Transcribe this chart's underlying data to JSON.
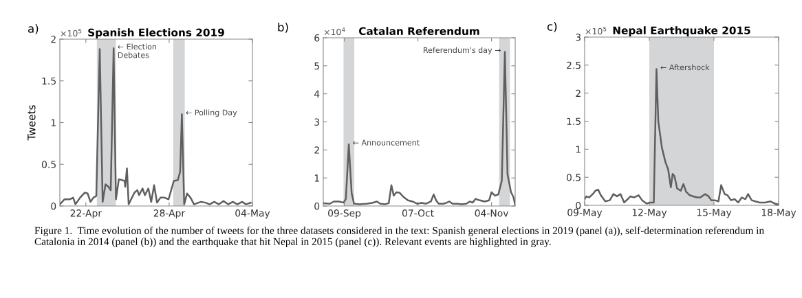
{
  "chart_data": [
    {
      "type": "line",
      "title": "Spanish Elections 2019",
      "ylabel": "Tweets",
      "xlim": [
        "2019-04-20T03:00",
        "2019-05-04"
      ],
      "xticks": [
        {
          "value": "2019-04-22",
          "label": "22-Apr"
        },
        {
          "value": "2019-04-28",
          "label": "28-Apr"
        },
        {
          "value": "2019-05-04",
          "label": "04-May"
        }
      ],
      "ylim": [
        0,
        2
      ],
      "yticks": [
        0,
        0.5,
        1,
        1.5,
        2
      ],
      "bands": [
        {
          "axis": "x",
          "from": "2019-04-22T19:00",
          "to": "2019-04-24T04:00",
          "color": "#d4d5d7"
        },
        {
          "axis": "x",
          "from": "2019-04-28T07:00",
          "to": "2019-04-29T03:00",
          "color": "#d4d5d7"
        }
      ],
      "series": [
        {
          "color": "#5f5f5f",
          "x": [
            "2019-04-20T03:00",
            "2019-04-20T11:00",
            "2019-04-20T20:00",
            "2019-04-21T02:00",
            "2019-04-21T06:00",
            "2019-04-21T14:00",
            "2019-04-21T22:00",
            "2019-04-22T03:00",
            "2019-04-22T08:00",
            "2019-04-22T13:00",
            "2019-04-22T18:00",
            "2019-04-23T00:00",
            "2019-04-23T05:00",
            "2019-04-23T10:00",
            "2019-04-23T15:00",
            "2019-04-23T19:00",
            "2019-04-24T00:00",
            "2019-04-24T04:00",
            "2019-04-24T09:00",
            "2019-04-24T15:00",
            "2019-04-24T19:00",
            "2019-04-24T20:00",
            "2019-04-24T23:00",
            "2019-04-25T02:00",
            "2019-04-25T07:00",
            "2019-04-25T12:00",
            "2019-04-25T17:00",
            "2019-04-25T20:00",
            "2019-04-26T02:00",
            "2019-04-26T06:00",
            "2019-04-26T12:00",
            "2019-04-26T17:00",
            "2019-04-26T22:00",
            "2019-04-27T03:00",
            "2019-04-27T09:00",
            "2019-04-27T16:00",
            "2019-04-27T23:00",
            "2019-04-28T08:00",
            "2019-04-28T15:00",
            "2019-04-28T19:00",
            "2019-04-28T22:00",
            "2019-04-29T02:00",
            "2019-04-29T07:00",
            "2019-04-29T13:00",
            "2019-04-29T19:00",
            "2019-04-30T07:00",
            "2019-04-30T15:00",
            "2019-04-30T22:00",
            "2019-05-01T06:00",
            "2019-05-01T14:00",
            "2019-05-01T22:00",
            "2019-05-02T06:00",
            "2019-05-02T14:00",
            "2019-05-02T22:00",
            "2019-05-03T06:00",
            "2019-05-03T13:00",
            "2019-05-03T21:00"
          ],
          "values": [
            0.02,
            0.08,
            0.08,
            0.1,
            0.02,
            0.1,
            0.16,
            0.15,
            0.05,
            0.1,
            0.12,
            1.88,
            0.05,
            0.26,
            0.23,
            0.19,
            1.89,
            0.08,
            0.32,
            0.31,
            0.3,
            0.23,
            0.45,
            0.02,
            0.09,
            0.16,
            0.19,
            0.13,
            0.21,
            0.13,
            0.21,
            0.05,
            0.25,
            0.04,
            0.1,
            0.1,
            0.08,
            0.3,
            0.31,
            0.41,
            1.1,
            0.02,
            0.15,
            0.1,
            0.02,
            0.05,
            0.04,
            0.02,
            0.05,
            0.02,
            0.06,
            0.02,
            0.05,
            0.02,
            0.05,
            0.02,
            0.04
          ]
        }
      ],
      "annotations": [
        "a)",
        "×10$^{5}$",
        "Figure 1.  Time evolution of the number of tweets for the three datasets considered in the text: Spanish general elections in 2019 (panel (a)), self-determination referendum in Catalonia in 2014 (panel (b)) and the earthquake that hit Nepal in 2015 (panel (c)). Relevant events are highlighted in gray.",
        {
          "text": "← Election\nDebates",
          "x": "2019-04-24T00:00",
          "y": 1.89
        },
        {
          "text": "← Polling Day",
          "x": "2019-04-28T22:00",
          "y": 1.1
        }
      ]
    },
    {
      "type": "line",
      "title": "Catalan Referendum",
      "xlim": [
        "2014-09-01",
        "2014-11-13"
      ],
      "xticks": [
        {
          "value": "2014-09-09",
          "label": "09-Sep"
        },
        {
          "value": "2014-10-07",
          "label": "07-Oct"
        },
        {
          "value": "2014-11-04",
          "label": "04-Nov"
        }
      ],
      "ylim": [
        0,
        6
      ],
      "yticks": [
        0,
        1,
        2,
        3,
        4,
        5,
        6
      ],
      "bands": [
        {
          "axis": "x",
          "from": "2014-09-08T17:00",
          "to": "2014-09-12T19:00",
          "color": "#d4d5d7"
        },
        {
          "axis": "x",
          "from": "2014-11-06T22:00",
          "to": "2014-11-11",
          "color": "#d4d5d7"
        }
      ],
      "series": [
        {
          "color": "#5f5f5f",
          "x": [
            "2014-09-01",
            "2014-09-03T12:00",
            "2014-09-05",
            "2014-09-07",
            "2014-09-08T17:00",
            "2014-09-09T14:00",
            "2014-09-10T17:00",
            "2014-09-11T19:00",
            "2014-09-12T17:00",
            "2014-09-14T19:00",
            "2014-09-17T12:00",
            "2014-09-19T14:00",
            "2014-09-21T10:00",
            "2014-09-22T17:00",
            "2014-09-24T10:00",
            "2014-09-25T22:00",
            "2014-09-26T22:00",
            "2014-09-27T19:00",
            "2014-09-28T19:00",
            "2014-09-30T02:00",
            "2014-10-01T10:00",
            "2014-10-03T05:00",
            "2014-10-04T22:00",
            "2014-10-06T17:00",
            "2014-10-08T10:00",
            "2014-10-10T02:00",
            "2014-10-11T22:00",
            "2014-10-13",
            "2014-10-13T22:00",
            "2014-10-14T22:00",
            "2014-10-16T17:00",
            "2014-10-18",
            "2014-10-19",
            "2014-10-20T05:00",
            "2014-10-21T22:00",
            "2014-10-23T17:00",
            "2014-10-25T10:00",
            "2014-10-26T17:00",
            "2014-10-27T19:00",
            "2014-10-28T22:00",
            "2014-10-30T14:00",
            "2014-11-01T10:00",
            "2014-11-03T02:00",
            "2014-11-04",
            "2014-11-05T07:00",
            "2014-11-06T14:00",
            "2014-11-07T22:00",
            "2014-11-09T02:00",
            "2014-11-10T02:00",
            "2014-11-11T10:00",
            "2014-11-12T07:00",
            "2014-11-13"
          ],
          "values": [
            0.1,
            0.08,
            0.16,
            0.16,
            0.12,
            0.25,
            2.2,
            0.45,
            0.08,
            0.06,
            0.08,
            0.11,
            0.16,
            0.08,
            0.06,
            0.1,
            0.74,
            0.37,
            0.49,
            0.47,
            0.33,
            0.2,
            0.16,
            0.08,
            0.11,
            0.08,
            0.16,
            0.41,
            0.2,
            0.08,
            0.08,
            0.12,
            0.16,
            0.08,
            0.08,
            0.06,
            0.08,
            0.16,
            0.12,
            0.25,
            0.2,
            0.16,
            0.2,
            0.49,
            0.37,
            0.41,
            0.9,
            5.5,
            1.14,
            0.49,
            0.33,
            0.04
          ]
        }
      ],
      "annotations": [
        "b)",
        "×10$^{4}$",
        {
          "text": "← Announcement",
          "x": "2014-09-10T17:00",
          "y": 2.2
        },
        {
          "text": "Referendum's day →",
          "x": "2014-11-09T02:00",
          "y": 5.5
        }
      ]
    },
    {
      "type": "line",
      "title": "Nepal Earthquake 2015",
      "xlim": [
        "2015-05-09",
        "2015-05-18"
      ],
      "xticks": [
        {
          "value": "2015-05-09",
          "label": "09-May"
        },
        {
          "value": "2015-05-12",
          "label": "12-May"
        },
        {
          "value": "2015-05-15",
          "label": "15-May"
        },
        {
          "value": "2015-05-18",
          "label": "18-May"
        }
      ],
      "ylim": [
        0,
        3
      ],
      "yticks": [
        0,
        0.5,
        1,
        1.5,
        2,
        2.5,
        3
      ],
      "bands": [
        {
          "axis": "x",
          "from": "2015-05-12",
          "to": "2015-05-15",
          "color": "#d4d5d7"
        }
      ],
      "series": [
        {
          "color": "#5f5f5f",
          "x": [
            "2015-05-09",
            "2015-05-09T02:00",
            "2015-05-09T05:00",
            "2015-05-09T09:00",
            "2015-05-09T12:00",
            "2015-05-09T15:00",
            "2015-05-09T18:00",
            "2015-05-09T23:00",
            "2015-05-10T04:00",
            "2015-05-10T08:00",
            "2015-05-10T12:00",
            "2015-05-10T16:00",
            "2015-05-10T20:00",
            "2015-05-11",
            "2015-05-11T03:00",
            "2015-05-11T07:00",
            "2015-05-11T12:00",
            "2015-05-11T16:00",
            "2015-05-11T21:00",
            "2015-05-12T01:00",
            "2015-05-12T05:00",
            "2015-05-12T08:00",
            "2015-05-12T10:00",
            "2015-05-12T14:00",
            "2015-05-12T18:00",
            "2015-05-12T21:00",
            "2015-05-13",
            "2015-05-13T02:00",
            "2015-05-13T04:00",
            "2015-05-13T07:00",
            "2015-05-13T11:00",
            "2015-05-13T14:00",
            "2015-05-13T17:00",
            "2015-05-13T21:00",
            "2015-05-14T01:00",
            "2015-05-14T05:00",
            "2015-05-14T09:00",
            "2015-05-14T14:00",
            "2015-05-14T18:00",
            "2015-05-14T21:00",
            "2015-05-15T01:00",
            "2015-05-15T05:00",
            "2015-05-15T08:00",
            "2015-05-15T12:00",
            "2015-05-15T15:00",
            "2015-05-15T19:00",
            "2015-05-15T23:00",
            "2015-05-16T03:00",
            "2015-05-16T07:00",
            "2015-05-16T11:00",
            "2015-05-16T14:00",
            "2015-05-16T18:00",
            "2015-05-16T22:00",
            "2015-05-17T03:00",
            "2015-05-17T09:00",
            "2015-05-17T15:00",
            "2015-05-17T20:00",
            "2015-05-18"
          ],
          "values": [
            0.11,
            0.16,
            0.14,
            0.2,
            0.26,
            0.28,
            0.18,
            0.07,
            0.09,
            0.2,
            0.16,
            0.2,
            0.05,
            0.11,
            0.16,
            0.14,
            0.18,
            0.09,
            0.03,
            0.05,
            0.05,
            2.43,
            1.5,
            1.03,
            0.77,
            0.64,
            0.32,
            0.56,
            0.52,
            0.3,
            0.26,
            0.38,
            0.24,
            0.18,
            0.16,
            0.14,
            0.14,
            0.2,
            0.16,
            0.09,
            0.09,
            0.07,
            0.36,
            0.2,
            0.18,
            0.09,
            0.11,
            0.05,
            0.14,
            0.11,
            0.2,
            0.09,
            0.07,
            0.05,
            0.05,
            0.07,
            0.03,
            0.01
          ]
        }
      ],
      "annotations": [
        "c)",
        "×10$^{5}$",
        {
          "text": "← Aftershock",
          "x": "2015-05-12T08:00",
          "y": 2.43
        }
      ]
    }
  ]
}
